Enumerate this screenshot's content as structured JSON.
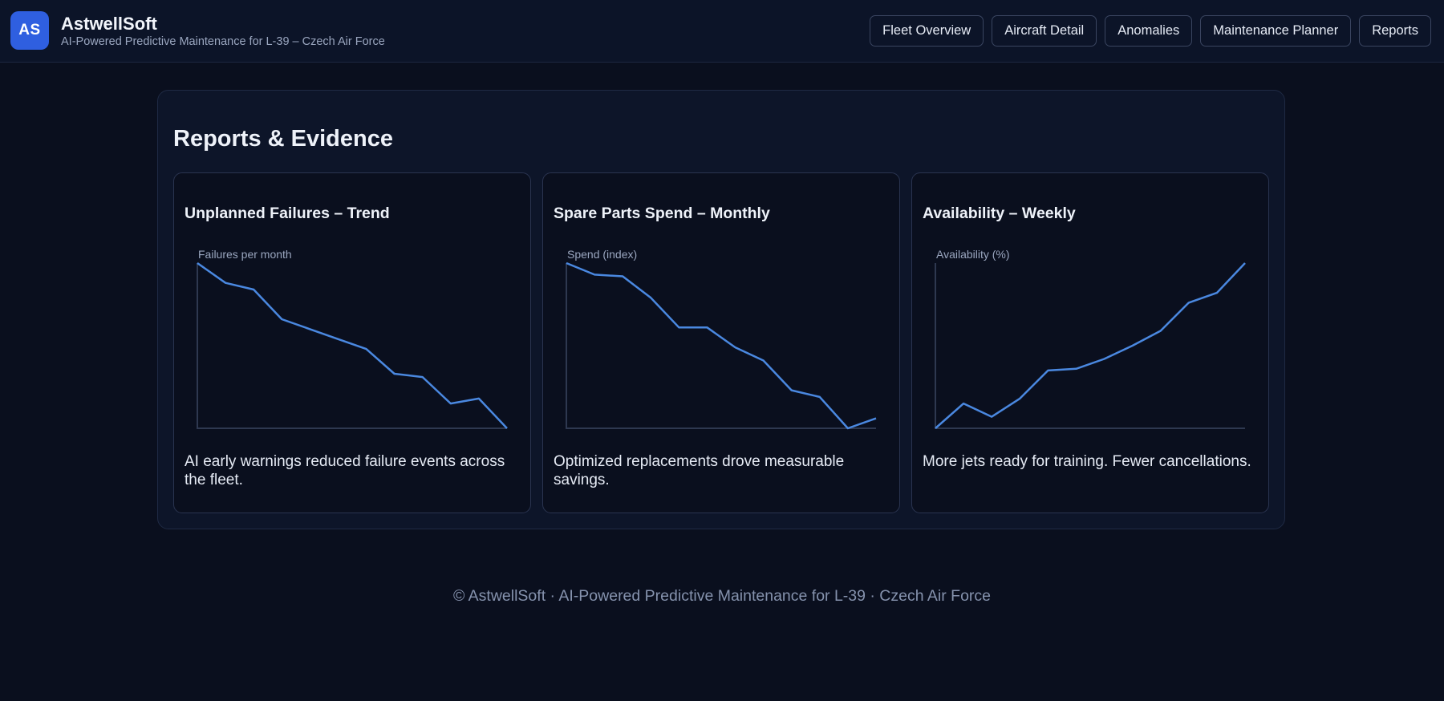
{
  "header": {
    "logo_text": "AS",
    "brand_name": "AstwellSoft",
    "brand_subtitle": "AI-Powered Predictive Maintenance for L-39 – Czech Air Force",
    "nav": [
      "Fleet Overview",
      "Aircraft Detail",
      "Anomalies",
      "Maintenance Planner",
      "Reports"
    ]
  },
  "main": {
    "title": "Reports & Evidence",
    "cards": [
      {
        "title": "Unplanned Failures – Trend",
        "description": "AI early warnings reduced failure events across the fleet."
      },
      {
        "title": "Spare Parts Spend – Monthly",
        "description": "Optimized replacements drove measurable savings."
      },
      {
        "title": "Availability – Weekly",
        "description": "More jets ready for training. Fewer cancellations."
      }
    ]
  },
  "chart_data": [
    {
      "type": "line",
      "ylabel": "Failures per month",
      "x": [
        1,
        2,
        3,
        4,
        5,
        6,
        7,
        8,
        9,
        10,
        11,
        12
      ],
      "values": [
        100,
        88,
        84,
        66,
        60,
        54,
        48,
        33,
        31,
        15,
        18,
        0
      ],
      "ylim": [
        0,
        100
      ],
      "grid": false,
      "color": "#4a88e0"
    },
    {
      "type": "line",
      "ylabel": "Spend (index)",
      "x": [
        1,
        2,
        3,
        4,
        5,
        6,
        7,
        8,
        9,
        10,
        11,
        12
      ],
      "values": [
        100,
        93,
        92,
        79,
        61,
        61,
        49,
        41,
        23,
        19,
        0,
        6
      ],
      "ylim": [
        0,
        100
      ],
      "grid": false,
      "color": "#4a88e0"
    },
    {
      "type": "line",
      "ylabel": "Availability (%)",
      "x": [
        1,
        2,
        3,
        4,
        5,
        6,
        7,
        8,
        9,
        10,
        11,
        12
      ],
      "values": [
        0,
        15,
        7,
        18,
        35,
        36,
        42,
        50,
        59,
        76,
        82,
        100
      ],
      "ylim": [
        0,
        100
      ],
      "grid": false,
      "color": "#4a88e0"
    }
  ],
  "footer": {
    "text": "© AstwellSoft · AI-Powered Predictive Maintenance for L-39 · Czech Air Force"
  }
}
